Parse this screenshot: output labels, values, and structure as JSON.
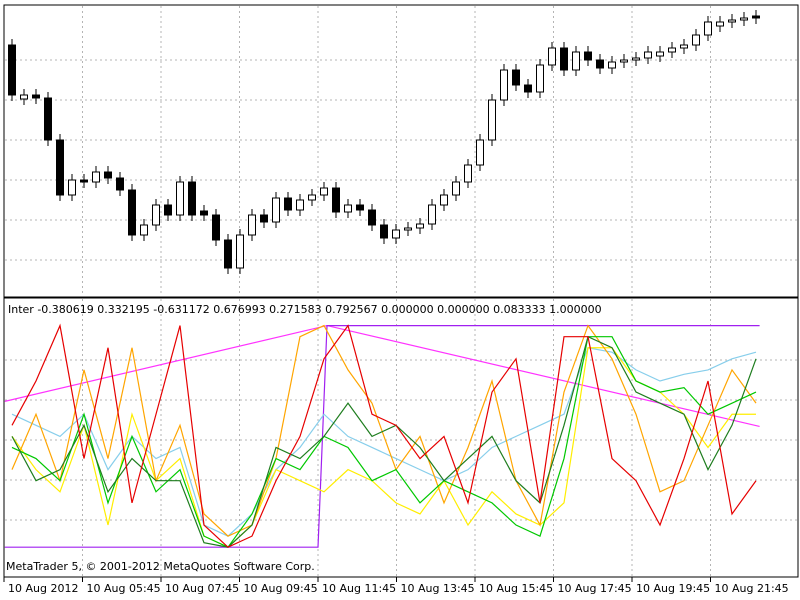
{
  "chart_data": [
    {
      "type": "candlestick",
      "ylim": [
        0,
        292
      ],
      "open": [
        252,
        198,
        202,
        199,
        157,
        102,
        117,
        115,
        125,
        119,
        107,
        62,
        72,
        92,
        82,
        115,
        86,
        82,
        57,
        29,
        62,
        82,
        75,
        99,
        87,
        97,
        102,
        109,
        85,
        92,
        87,
        72,
        59,
        67,
        69,
        73,
        92,
        102,
        115,
        132,
        157,
        197,
        227,
        212,
        205,
        232,
        249,
        227,
        245,
        237,
        229,
        235,
        237,
        239,
        241,
        245,
        249,
        252,
        262,
        271,
        275,
        277,
        281
      ],
      "high": [
        258,
        208,
        208,
        205,
        163,
        123,
        123,
        131,
        131,
        125,
        113,
        78,
        98,
        98,
        121,
        121,
        92,
        88,
        63,
        68,
        88,
        88,
        105,
        105,
        103,
        108,
        115,
        115,
        98,
        98,
        93,
        78,
        73,
        75,
        79,
        98,
        108,
        121,
        138,
        163,
        203,
        233,
        233,
        218,
        238,
        255,
        255,
        251,
        251,
        243,
        241,
        243,
        245,
        251,
        251,
        255,
        258,
        268,
        281,
        281,
        283,
        285,
        287
      ],
      "low": [
        196,
        192,
        193,
        151,
        96,
        96,
        109,
        109,
        113,
        101,
        56,
        56,
        66,
        76,
        76,
        76,
        76,
        51,
        23,
        23,
        56,
        69,
        69,
        81,
        81,
        91,
        96,
        79,
        79,
        81,
        66,
        53,
        53,
        61,
        63,
        67,
        86,
        96,
        109,
        126,
        151,
        191,
        206,
        199,
        199,
        226,
        221,
        221,
        231,
        223,
        223,
        229,
        231,
        233,
        235,
        239,
        243,
        246,
        256,
        265,
        269,
        271,
        273
      ],
      "close": [
        202,
        202,
        199,
        157,
        102,
        117,
        115,
        125,
        119,
        107,
        62,
        72,
        92,
        82,
        115,
        82,
        82,
        57,
        29,
        62,
        82,
        75,
        99,
        87,
        97,
        102,
        109,
        85,
        92,
        87,
        72,
        59,
        67,
        69,
        73,
        92,
        102,
        115,
        132,
        157,
        197,
        227,
        212,
        205,
        232,
        249,
        227,
        245,
        237,
        229,
        235,
        237,
        239,
        245,
        245,
        249,
        252,
        262,
        275,
        275,
        277,
        279,
        279
      ]
    },
    {
      "type": "line",
      "title": "Inter -0.380619 0.332195 -0.631172 0.676993 0.271583 0.792567 0.000000 0.000000 0.083333 1.000000",
      "annotation": "MetaTrader 5, © 2001-2012 MetaQuotes Software Corp.",
      "x_tick_labels": [
        "10 Aug 2012",
        "10 Aug 05:45",
        "10 Aug 07:45",
        "10 Aug 09:45",
        "10 Aug 11:45",
        "10 Aug 13:45",
        "10 Aug 15:45",
        "10 Aug 17:45",
        "10 Aug 19:45",
        "10 Aug 21:45"
      ],
      "ylim": [
        -0.13,
        1.12
      ],
      "xlim": [
        0,
        62
      ],
      "x": [
        0,
        2,
        4,
        6,
        8,
        10,
        12,
        14,
        16,
        18,
        20,
        22,
        24,
        26,
        28,
        30,
        32,
        34,
        36,
        38,
        40,
        42,
        44,
        46,
        48,
        50,
        52,
        54,
        56,
        58,
        60,
        62
      ],
      "series": [
        {
          "color": "#87ceeb",
          "values": [
            0.6,
            0.55,
            0.5,
            0.6,
            0.35,
            0.5,
            0.4,
            0.45,
            0.1,
            0.05,
            0.15,
            0.35,
            0.45,
            0.6,
            0.5,
            0.45,
            0.4,
            0.35,
            0.3,
            0.35,
            0.45,
            0.5,
            0.55,
            0.6,
            0.9,
            0.88,
            0.8,
            0.75,
            0.78,
            0.8,
            0.85,
            0.88
          ]
        },
        {
          "color": "#ffee00",
          "values": [
            0.5,
            0.35,
            0.25,
            0.55,
            0.1,
            0.6,
            0.3,
            0.4,
            0.05,
            0.0,
            0.1,
            0.35,
            0.3,
            0.25,
            0.35,
            0.3,
            0.2,
            0.15,
            0.3,
            0.1,
            0.25,
            0.15,
            0.1,
            0.2,
            0.9,
            0.9,
            0.75,
            0.7,
            0.6,
            0.45,
            0.6,
            0.6
          ]
        },
        {
          "color": "#ffa500",
          "values": [
            0.35,
            0.6,
            0.3,
            0.8,
            0.4,
            0.9,
            0.3,
            0.55,
            0.15,
            0.05,
            0.1,
            0.4,
            0.95,
            1.0,
            0.8,
            0.65,
            0.35,
            0.5,
            0.2,
            0.45,
            0.75,
            0.3,
            0.1,
            0.7,
            1.0,
            0.85,
            0.6,
            0.25,
            0.3,
            0.55,
            0.8,
            0.65
          ]
        },
        {
          "color": "#00c800",
          "values": [
            0.45,
            0.4,
            0.3,
            0.6,
            0.2,
            0.5,
            0.25,
            0.35,
            0.05,
            0.0,
            0.15,
            0.4,
            0.35,
            0.5,
            0.45,
            0.3,
            0.35,
            0.2,
            0.3,
            0.25,
            0.2,
            0.1,
            0.05,
            0.4,
            0.95,
            0.95,
            0.75,
            0.7,
            0.72,
            0.6,
            0.65,
            0.7
          ]
        },
        {
          "color": "#1e7d1e",
          "values": [
            0.5,
            0.3,
            0.35,
            0.55,
            0.25,
            0.4,
            0.3,
            0.3,
            0.02,
            0.0,
            0.1,
            0.45,
            0.4,
            0.5,
            0.65,
            0.5,
            0.55,
            0.45,
            0.3,
            0.4,
            0.5,
            0.3,
            0.2,
            0.55,
            0.95,
            0.9,
            0.7,
            0.65,
            0.6,
            0.35,
            0.55,
            0.85
          ]
        },
        {
          "color": "#e60000",
          "values": [
            0.55,
            0.75,
            1.0,
            0.4,
            0.9,
            0.2,
            0.6,
            1.0,
            0.1,
            0.0,
            0.05,
            0.3,
            0.5,
            0.85,
            1.0,
            0.6,
            0.55,
            0.4,
            0.5,
            0.2,
            0.7,
            0.85,
            0.2,
            0.95,
            0.95,
            0.4,
            0.3,
            0.1,
            0.4,
            0.75,
            0.15,
            0.3
          ]
        }
      ],
      "lines": [
        {
          "color": "#ff33ff",
          "x": [
            -0.6,
            26.25,
            62.3
          ],
          "values": [
            0.658,
            1.0,
            0.545
          ]
        },
        {
          "color": "#a020f0",
          "x": [
            -0.6,
            25.5,
            26.25,
            62.3
          ],
          "values": [
            0,
            0,
            1,
            1
          ]
        }
      ]
    }
  ]
}
